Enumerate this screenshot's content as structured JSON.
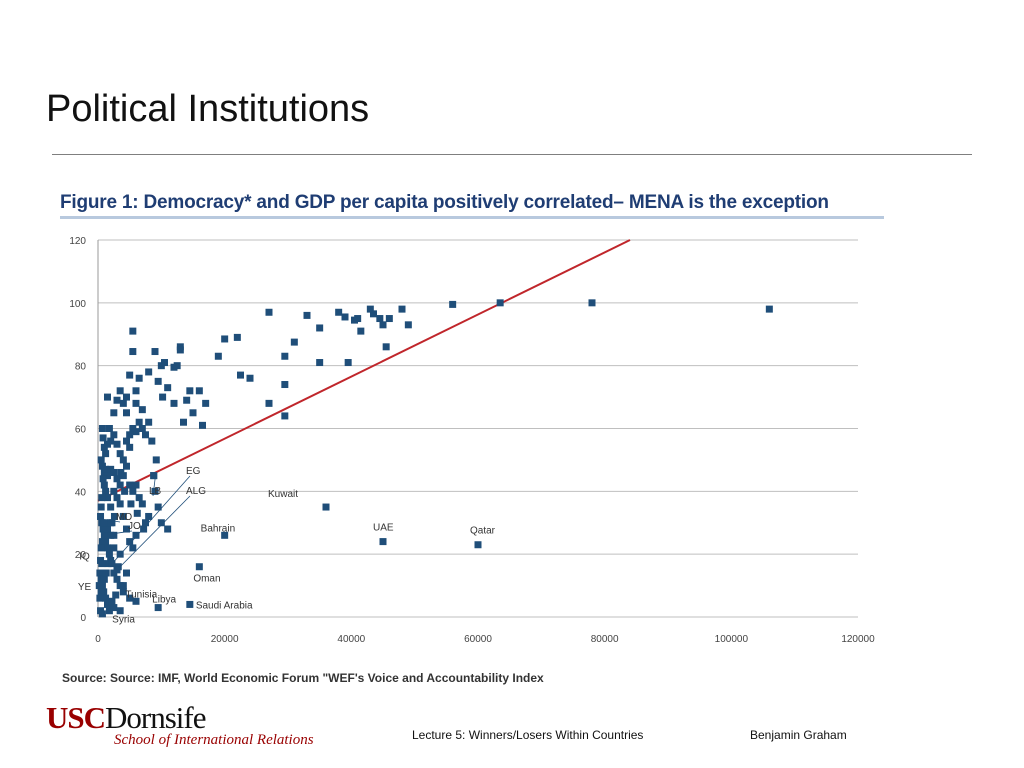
{
  "slide": {
    "title": "Political Institutions",
    "footer": {
      "lecture": "Lecture 5: Winners/Losers Within Countries",
      "author": "Benjamin Graham"
    },
    "logo": {
      "usc": "USC",
      "dornsife": "Dornsife",
      "subtitle": "School of International Relations"
    }
  },
  "colors": {
    "point": "#1f4e79",
    "trendline": "#c0262b",
    "grid": "#bfbfbf",
    "figure_title": "#1f3d73"
  },
  "chart_data": {
    "type": "scatter",
    "title": "Figure 1: Democracy* and GDP per capita positively correlated– MENA is the exception",
    "source": "Source: Source: IMF, World Economic Forum \"WEF's Voice and Accountability Index",
    "xlabel": "",
    "ylabel": "",
    "xlim": [
      0,
      120000
    ],
    "ylim": [
      0,
      120
    ],
    "xticks": [
      "0",
      "20000",
      "40000",
      "60000",
      "80000",
      "100000",
      "120000"
    ],
    "yticks": [
      "0",
      "20",
      "40",
      "60",
      "80",
      "100",
      "120"
    ],
    "grid": true,
    "trendline": {
      "x": [
        0,
        84000
      ],
      "y": [
        37,
        120
      ]
    },
    "labeled_points": [
      {
        "label": "Kuwait",
        "x": 36000,
        "y": 35
      },
      {
        "label": "UAE",
        "x": 45000,
        "y": 24
      },
      {
        "label": "Qatar",
        "x": 60000,
        "y": 23
      },
      {
        "label": "Bahrain",
        "x": 20000,
        "y": 26
      },
      {
        "label": "Oman",
        "x": 16000,
        "y": 16
      },
      {
        "label": "Saudi Arabia",
        "x": 14500,
        "y": 4
      },
      {
        "label": "Libya",
        "x": 9500,
        "y": 3
      },
      {
        "label": "Tunisia",
        "x": 4000,
        "y": 10
      },
      {
        "label": "Syria",
        "x": 3500,
        "y": 2
      },
      {
        "label": "EG",
        "x": 2200,
        "y": 17
      },
      {
        "label": "LB",
        "x": 8800,
        "y": 45
      },
      {
        "label": "ALG",
        "x": 3000,
        "y": 15
      },
      {
        "label": "MO",
        "x": 2000,
        "y": 30
      },
      {
        "label": "JO",
        "x": 2500,
        "y": 26
      },
      {
        "label": "IQ",
        "x": 600,
        "y": 17
      },
      {
        "label": "YE",
        "x": 500,
        "y": 8
      }
    ],
    "points": [
      [
        106000,
        98
      ],
      [
        78000,
        100
      ],
      [
        63500,
        100
      ],
      [
        56000,
        99.5
      ],
      [
        48000,
        98
      ],
      [
        46000,
        95
      ],
      [
        45000,
        93
      ],
      [
        44500,
        95
      ],
      [
        43500,
        96.5
      ],
      [
        43000,
        98
      ],
      [
        41000,
        95
      ],
      [
        40500,
        94.5
      ],
      [
        39000,
        95.5
      ],
      [
        38000,
        97
      ],
      [
        35000,
        92
      ],
      [
        33000,
        96
      ],
      [
        49000,
        93
      ],
      [
        41500,
        91
      ],
      [
        35000,
        81
      ],
      [
        39500,
        81
      ],
      [
        45500,
        86
      ],
      [
        27000,
        97
      ],
      [
        31000,
        87.5
      ],
      [
        29500,
        83
      ],
      [
        29500,
        74
      ],
      [
        29500,
        64
      ],
      [
        27000,
        68
      ],
      [
        24000,
        76
      ],
      [
        22500,
        77
      ],
      [
        22000,
        89
      ],
      [
        20000,
        88.5
      ],
      [
        19000,
        83
      ],
      [
        17000,
        68
      ],
      [
        16000,
        72
      ],
      [
        15000,
        65
      ],
      [
        14500,
        72
      ],
      [
        13500,
        62
      ],
      [
        12500,
        80
      ],
      [
        12000,
        79.5
      ],
      [
        13000,
        86
      ],
      [
        13000,
        85
      ],
      [
        11000,
        73
      ],
      [
        10500,
        81
      ],
      [
        10000,
        80
      ],
      [
        9500,
        75
      ],
      [
        9000,
        84.5
      ],
      [
        8000,
        78
      ],
      [
        8000,
        62
      ],
      [
        7500,
        58
      ],
      [
        7000,
        66
      ],
      [
        6500,
        76
      ],
      [
        6000,
        72
      ],
      [
        6000,
        68
      ],
      [
        5500,
        84.5
      ],
      [
        5500,
        91
      ],
      [
        5000,
        77
      ],
      [
        4500,
        70
      ],
      [
        4500,
        65
      ],
      [
        4000,
        68
      ],
      [
        3500,
        72
      ],
      [
        3000,
        69
      ],
      [
        2500,
        65
      ],
      [
        1500,
        70
      ],
      [
        7000,
        60
      ],
      [
        6500,
        62
      ],
      [
        6000,
        59
      ],
      [
        5500,
        60
      ],
      [
        5000,
        58
      ],
      [
        5000,
        54
      ],
      [
        4500,
        56
      ],
      [
        4000,
        50
      ],
      [
        3500,
        52
      ],
      [
        3000,
        55
      ],
      [
        2500,
        58
      ],
      [
        2000,
        56
      ],
      [
        1800,
        60
      ],
      [
        1500,
        55
      ],
      [
        1200,
        52
      ],
      [
        1000,
        54
      ],
      [
        800,
        57
      ],
      [
        700,
        60
      ],
      [
        500,
        50
      ],
      [
        700,
        48
      ],
      [
        1000,
        46
      ],
      [
        1200,
        47
      ],
      [
        1500,
        45
      ],
      [
        2000,
        47
      ],
      [
        2500,
        46
      ],
      [
        3000,
        44
      ],
      [
        3500,
        42
      ],
      [
        4000,
        45
      ],
      [
        4500,
        48
      ],
      [
        5000,
        42
      ],
      [
        5500,
        40
      ],
      [
        6000,
        42
      ],
      [
        6500,
        38
      ],
      [
        7000,
        36
      ],
      [
        7500,
        30
      ],
      [
        8000,
        32
      ],
      [
        8800,
        45
      ],
      [
        9000,
        40
      ],
      [
        9500,
        35
      ],
      [
        10000,
        30
      ],
      [
        11000,
        28
      ],
      [
        6000,
        26
      ],
      [
        5500,
        22
      ],
      [
        5000,
        24
      ],
      [
        4500,
        28
      ],
      [
        4000,
        32
      ],
      [
        3500,
        36
      ],
      [
        3000,
        38
      ],
      [
        2500,
        40
      ],
      [
        2000,
        35
      ],
      [
        1500,
        38
      ],
      [
        1200,
        40
      ],
      [
        1000,
        42
      ],
      [
        800,
        44
      ],
      [
        600,
        38
      ],
      [
        500,
        35
      ],
      [
        400,
        32
      ],
      [
        600,
        30
      ],
      [
        800,
        28
      ],
      [
        1000,
        26
      ],
      [
        1200,
        24
      ],
      [
        1500,
        22
      ],
      [
        1800,
        20
      ],
      [
        2000,
        18
      ],
      [
        2500,
        14
      ],
      [
        3000,
        12
      ],
      [
        3500,
        10
      ],
      [
        4000,
        8
      ],
      [
        5000,
        6
      ],
      [
        6000,
        5
      ],
      [
        4500,
        14
      ],
      [
        3500,
        20
      ],
      [
        2500,
        22
      ],
      [
        2000,
        26
      ],
      [
        1500,
        28
      ],
      [
        1000,
        30
      ],
      [
        700,
        24
      ],
      [
        500,
        22
      ],
      [
        400,
        18
      ],
      [
        300,
        14
      ],
      [
        500,
        12
      ],
      [
        700,
        10
      ],
      [
        900,
        8
      ],
      [
        1200,
        6
      ],
      [
        1500,
        4
      ],
      [
        1800,
        2
      ],
      [
        2500,
        3
      ],
      [
        300,
        6
      ],
      [
        200,
        10
      ],
      [
        400,
        2
      ],
      [
        700,
        1
      ],
      [
        1000,
        12
      ],
      [
        1300,
        14
      ],
      [
        2200,
        5
      ],
      [
        2800,
        7
      ],
      [
        3200,
        16
      ],
      [
        1600,
        17
      ],
      [
        2200,
        30
      ],
      [
        2600,
        32
      ],
      [
        3600,
        46
      ],
      [
        4200,
        40
      ],
      [
        5200,
        36
      ],
      [
        6200,
        33
      ],
      [
        7200,
        28
      ],
      [
        8500,
        56
      ],
      [
        9200,
        50
      ],
      [
        12000,
        68
      ],
      [
        14000,
        69
      ],
      [
        16500,
        61
      ],
      [
        10200,
        70
      ]
    ]
  }
}
